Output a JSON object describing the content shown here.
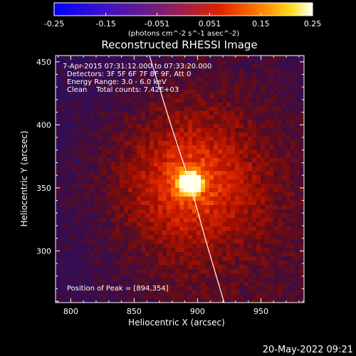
{
  "chart_data": {
    "type": "heatmap",
    "title": "Reconstructed RHESSI Image",
    "xlabel": "Heliocentric X (arcsec)",
    "ylabel": "Heliocentric Y (arcsec)",
    "xlim": [
      788,
      984
    ],
    "ylim": [
      259,
      455
    ],
    "x_ticks": [
      800,
      850,
      900,
      950
    ],
    "y_ticks": [
      300,
      350,
      400,
      450
    ],
    "colorbar": {
      "range": [
        -0.25,
        0.25
      ],
      "ticks": [
        "-0.25",
        "-0.15",
        "-0.051",
        "0.051",
        "0.15",
        "0.25"
      ],
      "unit_text": "(photons cm^-2 s^-1 asec^-2)"
    },
    "annotations": {
      "time_range": "7-Apr-2015 07:31:12.000 to 07:33:20.000",
      "detectors": "Detectors: 3F 5F 6F 7F 8F 9F, Att 0",
      "energy_range": "Energy Range: 3.0 - 6.0 keV",
      "clean_total": "Clean    Total counts: 7.42E+03",
      "peak_position": "Position of Peak = [894,354]"
    },
    "peak": {
      "x": 894,
      "y": 354,
      "value": 0.25
    },
    "limb_curve": [
      {
        "x": 862,
        "y": 455
      },
      {
        "x": 879,
        "y": 400
      },
      {
        "x": 894,
        "y": 354
      },
      {
        "x": 906,
        "y": 310
      },
      {
        "x": 921,
        "y": 259
      }
    ],
    "footer_timestamp": "20-May-2022 09:21"
  }
}
